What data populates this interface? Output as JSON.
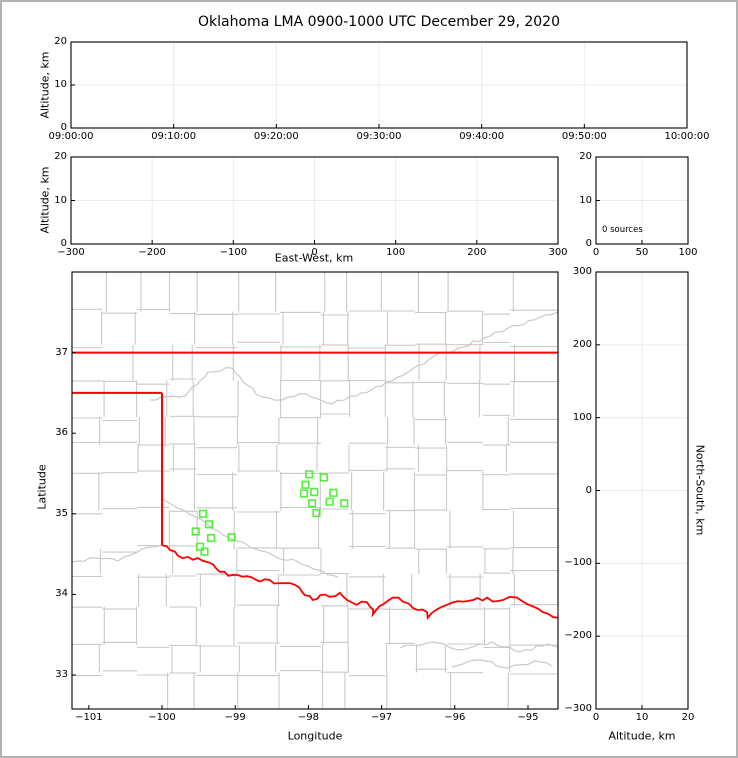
{
  "title": "Oklahoma LMA 0900-1000 UTC December 29, 2020",
  "colors": {
    "background": "#ffffff",
    "figure_border": "#b2b2b2",
    "axis_spine": "#000000",
    "grid_line": "#ececec",
    "county_line": "#c9c9c9",
    "state_border": "#ff0000",
    "station_marker": "#55ee3a"
  },
  "chart_data": [
    {
      "id": "time_height_panel",
      "type": "scatter",
      "xlabel": "",
      "ylabel": "Altitude, km",
      "xticks": [
        "09:00:00",
        "09:10:00",
        "09:20:00",
        "09:30:00",
        "09:40:00",
        "09:50:00",
        "10:00:00"
      ],
      "yticks": [
        "0",
        "10",
        "20"
      ],
      "xlim": [
        "09:00:00",
        "10:00:00"
      ],
      "ylim": [
        0,
        20
      ],
      "points": []
    },
    {
      "id": "eastwest_height_panel",
      "type": "scatter",
      "xlabel": "East-West, km",
      "ylabel": "Altitude, km",
      "xticks": [
        "−300",
        "−200",
        "−100",
        "0",
        "100",
        "200",
        "300"
      ],
      "yticks": [
        "0",
        "10",
        "20"
      ],
      "xlim": [
        -300,
        300
      ],
      "ylim": [
        0,
        20
      ],
      "points": []
    },
    {
      "id": "altitude_histogram_panel",
      "type": "histogram",
      "annotation": "0 sources",
      "xticks": [
        "0",
        "50",
        "100"
      ],
      "yticks": [
        "0",
        "10",
        "20"
      ],
      "xlim": [
        0,
        100
      ],
      "ylim": [
        0,
        20
      ],
      "values": []
    },
    {
      "id": "plan_view_map_panel",
      "type": "scatter",
      "xlabel": "Longitude",
      "ylabel": "Latitude",
      "xticks": [
        "−101",
        "−100",
        "−99",
        "−98",
        "−97",
        "−96",
        "−95"
      ],
      "yticks": [
        "33",
        "34",
        "35",
        "36",
        "37"
      ],
      "xlim": [
        -101.23,
        -94.59
      ],
      "ylim": [
        32.578,
        38.0
      ],
      "stations": [
        [
          -97.99,
          35.49
        ],
        [
          -97.79,
          35.45
        ],
        [
          -98.04,
          35.36
        ],
        [
          -97.92,
          35.27
        ],
        [
          -98.06,
          35.25
        ],
        [
          -97.66,
          35.26
        ],
        [
          -97.95,
          35.13
        ],
        [
          -97.71,
          35.15
        ],
        [
          -97.51,
          35.13
        ],
        [
          -97.89,
          35.01
        ],
        [
          -99.44,
          35.0
        ],
        [
          -99.36,
          34.87
        ],
        [
          -99.54,
          34.78
        ],
        [
          -99.33,
          34.7
        ],
        [
          -99.05,
          34.71
        ],
        [
          -99.48,
          34.59
        ],
        [
          -99.42,
          34.53
        ]
      ],
      "state_border": {
        "north": [
          [
            -101.23,
            37.0
          ],
          [
            -94.59,
            37.0
          ]
        ],
        "panhandle_south": [
          [
            -101.23,
            36.5
          ],
          [
            -100.0,
            36.5
          ]
        ],
        "west": [
          [
            -100.0,
            36.5
          ],
          [
            -100.0,
            34.61
          ]
        ],
        "red_river": [
          [
            -100.0,
            34.61
          ],
          [
            -99.89,
            34.55
          ],
          [
            -99.72,
            34.45
          ],
          [
            -99.58,
            34.43
          ],
          [
            -99.51,
            34.45
          ],
          [
            -99.37,
            34.4
          ],
          [
            -99.21,
            34.28
          ],
          [
            -99.03,
            34.24
          ],
          [
            -98.9,
            34.22
          ],
          [
            -98.66,
            34.16
          ],
          [
            -98.53,
            34.18
          ],
          [
            -98.39,
            34.14
          ],
          [
            -98.25,
            34.14
          ],
          [
            -98.12,
            34.08
          ],
          [
            -98.05,
            33.99
          ],
          [
            -97.94,
            33.93
          ],
          [
            -97.84,
            33.99
          ],
          [
            -97.71,
            33.97
          ],
          [
            -97.57,
            34.02
          ],
          [
            -97.47,
            33.93
          ],
          [
            -97.34,
            33.87
          ],
          [
            -97.27,
            33.91
          ],
          [
            -97.16,
            33.85
          ],
          [
            -97.12,
            33.75
          ],
          [
            -97.07,
            33.81
          ],
          [
            -96.93,
            33.91
          ],
          [
            -96.85,
            33.96
          ],
          [
            -96.71,
            33.91
          ],
          [
            -96.57,
            33.83
          ],
          [
            -96.38,
            33.78
          ],
          [
            -96.37,
            33.71
          ],
          [
            -96.25,
            33.81
          ],
          [
            -96.11,
            33.87
          ],
          [
            -96.03,
            33.9
          ],
          [
            -95.89,
            33.91
          ],
          [
            -95.75,
            33.93
          ],
          [
            -95.56,
            33.96
          ],
          [
            -95.48,
            33.91
          ],
          [
            -95.34,
            33.93
          ],
          [
            -95.25,
            33.97
          ],
          [
            -95.15,
            33.96
          ],
          [
            -95.07,
            33.91
          ],
          [
            -94.93,
            33.85
          ],
          [
            -94.8,
            33.78
          ],
          [
            -94.66,
            33.72
          ],
          [
            -94.59,
            33.71
          ]
        ]
      }
    },
    {
      "id": "northsouth_height_panel",
      "type": "scatter",
      "xlabel": "Altitude, km",
      "ylabel": "North-South, km",
      "xticks": [
        "0",
        "10",
        "20"
      ],
      "yticks": [
        "300",
        "200",
        "100",
        "0",
        "−100",
        "−200",
        "−300"
      ],
      "xlim": [
        0,
        20
      ],
      "ylim": [
        -300,
        300
      ],
      "points": []
    }
  ]
}
